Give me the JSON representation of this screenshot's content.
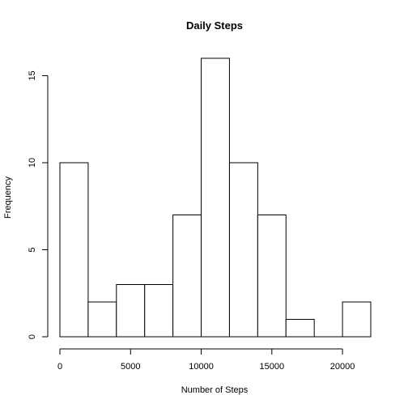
{
  "chart_data": {
    "type": "bar",
    "subtype": "histogram",
    "title": "Daily Steps",
    "xlabel": "Number of Steps",
    "ylabel": "Frequency",
    "bin_edges": [
      0,
      2000,
      4000,
      6000,
      8000,
      10000,
      12000,
      14000,
      16000,
      18000,
      20000,
      22000
    ],
    "values": [
      10,
      2,
      3,
      3,
      7,
      16,
      10,
      7,
      1,
      0,
      2
    ],
    "xlim": [
      0,
      22000
    ],
    "ylim": [
      0,
      16
    ],
    "x_ticks": [
      0,
      5000,
      10000,
      15000,
      20000
    ],
    "x_tick_labels": [
      "0",
      "5000",
      "10000",
      "15000",
      "20000"
    ],
    "y_ticks": [
      0,
      5,
      10,
      15
    ],
    "y_tick_labels": [
      "0",
      "5",
      "10",
      "15"
    ],
    "bar_fill": "#ffffff",
    "bar_stroke": "#000000",
    "grid": false,
    "legend": "none"
  }
}
